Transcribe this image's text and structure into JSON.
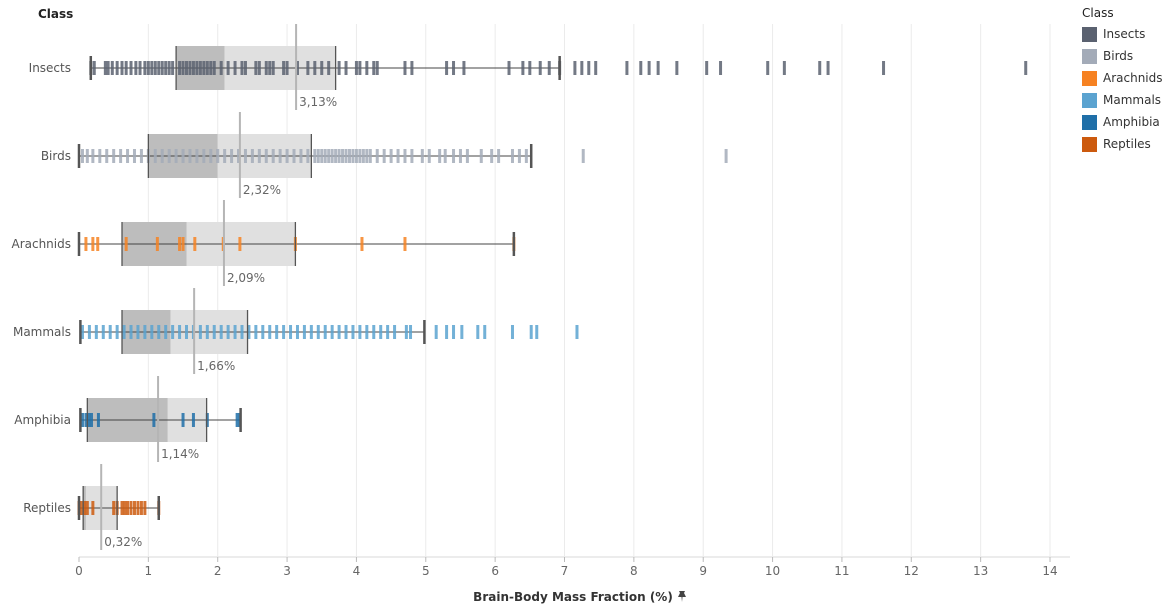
{
  "chart_data": {
    "type": "box-plot",
    "row_header": "Class",
    "xlabel": "Brain-Body Mass Fraction (%)",
    "xlim": [
      0,
      14.5
    ],
    "x_ticks": [
      "0",
      "1",
      "2",
      "3",
      "4",
      "5",
      "6",
      "7",
      "8",
      "9",
      "10",
      "11",
      "12",
      "13",
      "14"
    ],
    "legend": {
      "title": "Class",
      "placement": "top-right",
      "items": [
        {
          "name": "Insects",
          "color": "#5a6170"
        },
        {
          "name": "Birds",
          "color": "#a3abb8"
        },
        {
          "name": "Arachnids",
          "color": "#f68222"
        },
        {
          "name": "Mammals",
          "color": "#5ba3d0"
        },
        {
          "name": "Amphibia",
          "color": "#1f6fa8"
        },
        {
          "name": "Reptiles",
          "color": "#cc5a0e"
        }
      ]
    },
    "classes": [
      {
        "name": "Insects",
        "color": "#5a6170",
        "min": 0.17,
        "q1": 1.4,
        "median": 2.1,
        "q3": 3.7,
        "max": 6.93,
        "average": 3.13,
        "average_label": "3,13%",
        "points": [
          0.17,
          0.22,
          0.38,
          0.42,
          0.48,
          0.55,
          0.62,
          0.68,
          0.75,
          0.82,
          0.88,
          0.95,
          1.0,
          1.05,
          1.1,
          1.15,
          1.2,
          1.25,
          1.3,
          1.35,
          1.45,
          1.5,
          1.55,
          1.6,
          1.65,
          1.7,
          1.75,
          1.8,
          1.85,
          1.9,
          1.95,
          2.05,
          2.15,
          2.25,
          2.35,
          2.4,
          2.55,
          2.6,
          2.7,
          2.75,
          2.8,
          2.95,
          3.0,
          3.15,
          3.3,
          3.4,
          3.5,
          3.6,
          3.75,
          3.85,
          4.0,
          4.05,
          4.15,
          4.25,
          4.3,
          4.7,
          4.8,
          5.3,
          5.4,
          5.55,
          6.2,
          6.4,
          6.5,
          6.65,
          6.78,
          6.93,
          7.15,
          7.25,
          7.35,
          7.45,
          7.9,
          8.1,
          8.22,
          8.35,
          8.62,
          9.05,
          9.25,
          9.93,
          10.17,
          10.68,
          10.8,
          11.6,
          13.65
        ]
      },
      {
        "name": "Birds",
        "color": "#a3abb8",
        "min": 0.0,
        "q1": 1.0,
        "median": 2.0,
        "q3": 3.35,
        "max": 6.52,
        "average": 2.32,
        "average_label": "2,32%",
        "points": [
          0.05,
          0.12,
          0.2,
          0.3,
          0.4,
          0.5,
          0.6,
          0.7,
          0.8,
          0.9,
          1.0,
          1.1,
          1.2,
          1.3,
          1.4,
          1.5,
          1.6,
          1.7,
          1.8,
          1.9,
          2.0,
          2.1,
          2.2,
          2.3,
          2.4,
          2.5,
          2.6,
          2.7,
          2.8,
          2.9,
          3.0,
          3.1,
          3.2,
          3.3,
          3.4,
          3.45,
          3.5,
          3.55,
          3.6,
          3.65,
          3.7,
          3.75,
          3.8,
          3.85,
          3.9,
          3.95,
          4.0,
          4.05,
          4.1,
          4.15,
          4.2,
          4.3,
          4.4,
          4.5,
          4.6,
          4.7,
          4.8,
          4.95,
          5.05,
          5.2,
          5.28,
          5.4,
          5.5,
          5.6,
          5.8,
          5.95,
          6.05,
          6.25,
          6.35,
          6.45,
          7.27,
          9.33
        ]
      },
      {
        "name": "Arachnids",
        "color": "#f68222",
        "min": 0.0,
        "q1": 0.62,
        "median": 1.55,
        "q3": 3.12,
        "max": 6.27,
        "average": 2.09,
        "average_label": "2,09%",
        "points": [
          0.1,
          0.2,
          0.27,
          0.68,
          1.13,
          1.45,
          1.5,
          1.67,
          2.08,
          2.32,
          3.12,
          4.08,
          4.7,
          6.27
        ]
      },
      {
        "name": "Mammals",
        "color": "#5ba3d0",
        "min": 0.02,
        "q1": 0.62,
        "median": 1.32,
        "q3": 2.43,
        "max": 4.98,
        "average": 1.66,
        "average_label": "1,66%",
        "points": [
          0.05,
          0.15,
          0.25,
          0.35,
          0.45,
          0.55,
          0.65,
          0.75,
          0.85,
          0.95,
          1.05,
          1.15,
          1.25,
          1.35,
          1.45,
          1.55,
          1.65,
          1.75,
          1.85,
          1.95,
          2.05,
          2.15,
          2.25,
          2.35,
          2.45,
          2.55,
          2.65,
          2.75,
          2.85,
          2.95,
          3.05,
          3.15,
          3.25,
          3.35,
          3.45,
          3.55,
          3.65,
          3.75,
          3.85,
          3.95,
          4.05,
          4.15,
          4.25,
          4.35,
          4.45,
          4.55,
          4.72,
          4.78,
          5.15,
          5.3,
          5.4,
          5.52,
          5.75,
          5.85,
          6.25,
          6.52,
          6.6,
          7.18
        ]
      },
      {
        "name": "Amphibia",
        "color": "#1f6fa8",
        "min": 0.02,
        "q1": 0.12,
        "median": 1.28,
        "q3": 1.84,
        "max": 2.33,
        "average": 1.14,
        "average_label": "1,14%",
        "points": [
          0.05,
          0.1,
          0.14,
          0.18,
          0.28,
          1.08,
          1.5,
          1.65,
          1.85,
          2.28,
          2.32
        ]
      },
      {
        "name": "Reptiles",
        "color": "#cc5a0e",
        "min": 0.0,
        "q1": 0.06,
        "median": 0.1,
        "q3": 0.55,
        "max": 1.15,
        "average": 0.32,
        "average_label": "0,32%",
        "points": [
          0.0,
          0.04,
          0.08,
          0.12,
          0.2,
          0.5,
          0.55,
          0.62,
          0.66,
          0.7,
          0.75,
          0.8,
          0.85,
          0.9,
          0.95,
          1.15
        ]
      }
    ]
  }
}
